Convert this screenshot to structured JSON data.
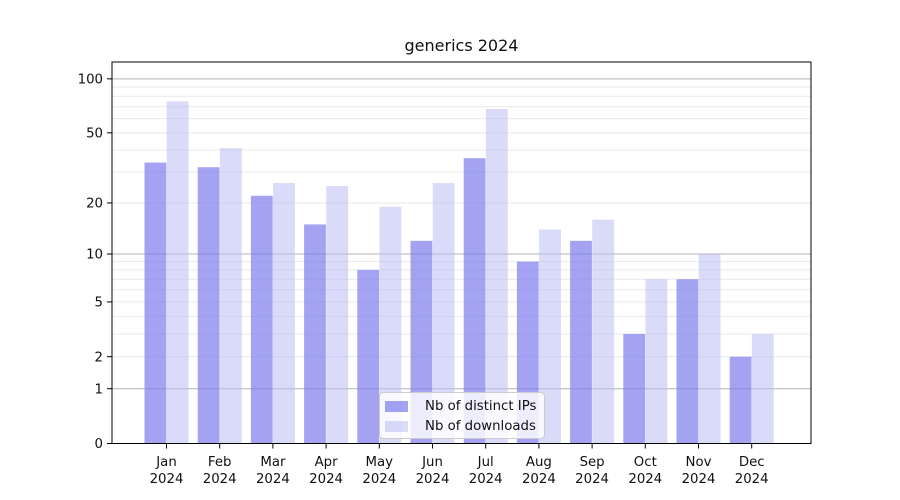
{
  "chart_data": {
    "type": "bar",
    "title": "generics 2024",
    "categories": [
      {
        "month": "Jan",
        "year": "2024"
      },
      {
        "month": "Feb",
        "year": "2024"
      },
      {
        "month": "Mar",
        "year": "2024"
      },
      {
        "month": "Apr",
        "year": "2024"
      },
      {
        "month": "May",
        "year": "2024"
      },
      {
        "month": "Jun",
        "year": "2024"
      },
      {
        "month": "Jul",
        "year": "2024"
      },
      {
        "month": "Aug",
        "year": "2024"
      },
      {
        "month": "Sep",
        "year": "2024"
      },
      {
        "month": "Oct",
        "year": "2024"
      },
      {
        "month": "Nov",
        "year": "2024"
      },
      {
        "month": "Dec",
        "year": "2024"
      }
    ],
    "series": [
      {
        "name": "Nb of distinct IPs",
        "key": "ips",
        "color": "rgba(127,127,237,0.72)",
        "solid_color": "#a3a3f2",
        "values": [
          34,
          32,
          22,
          15,
          8,
          12,
          36,
          9,
          12,
          3,
          7,
          2
        ]
      },
      {
        "name": "Nb of downloads",
        "key": "downloads",
        "color": "rgba(188,188,244,0.55)",
        "solid_color": "#dadaf9",
        "values": [
          75,
          41,
          26,
          25,
          19,
          26,
          68,
          14,
          16,
          7,
          10,
          3
        ]
      }
    ],
    "xlabel": "",
    "ylabel": "",
    "y_scale": "log1p",
    "ylim": [
      0,
      124
    ],
    "y_ticks": [
      0,
      1,
      2,
      5,
      10,
      20,
      50,
      100
    ],
    "grid_major": [
      1,
      10,
      100
    ],
    "grid_minor": [
      2,
      3,
      4,
      5,
      6,
      7,
      8,
      9,
      20,
      30,
      40,
      50,
      60,
      70,
      80,
      90
    ],
    "grid_major_color": "#b3b3b3",
    "grid_minor_color": "#e9e9e9",
    "spine_color": "#000000",
    "text_color": "#111111",
    "legend_position": "lower center"
  }
}
